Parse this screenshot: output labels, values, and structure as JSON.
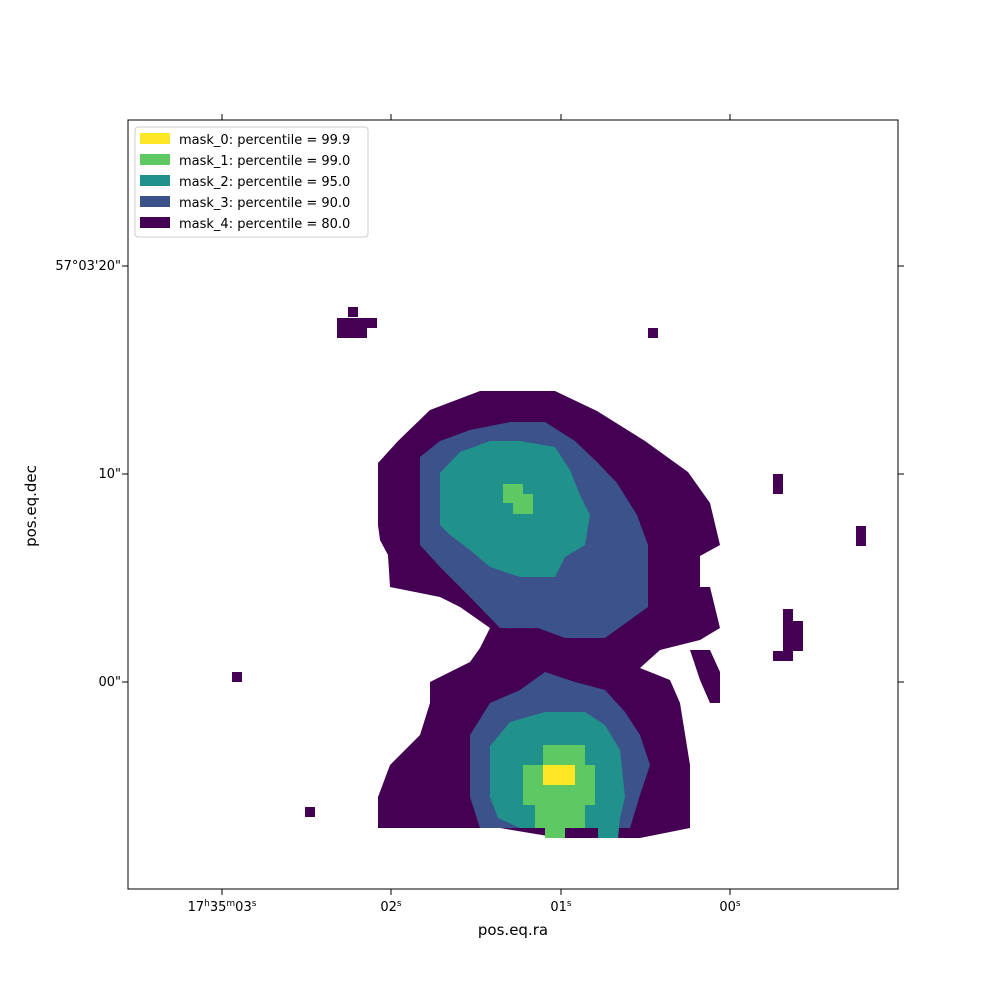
{
  "chart_data": {
    "type": "heatmap",
    "title": "",
    "xlabel": "pos.eq.ra",
    "ylabel": "pos.eq.dec",
    "grid": false,
    "legend_placement": "upper-left",
    "x_tick_labels": [
      {
        "h": "17",
        "m": "35",
        "s": "03",
        "sup_h": "h",
        "sup_m": "m",
        "sup_s": "s"
      },
      {
        "s": "02",
        "sup_s": "s"
      },
      {
        "s": "01",
        "sup_s": "s"
      },
      {
        "s": "00",
        "sup_s": "s"
      }
    ],
    "y_tick_labels": [
      "57°03'20\"",
      "10\"",
      "00\""
    ],
    "legend": [
      {
        "label": "mask_0: percentile = 99.9",
        "color": "#fde725"
      },
      {
        "label": "mask_1: percentile = 99.0",
        "color": "#5ec962"
      },
      {
        "label": "mask_2: percentile = 95.0",
        "color": "#21918c"
      },
      {
        "label": "mask_3: percentile = 90.0",
        "color": "#3b528b"
      },
      {
        "label": "mask_4: percentile = 80.0",
        "color": "#440154"
      }
    ]
  }
}
